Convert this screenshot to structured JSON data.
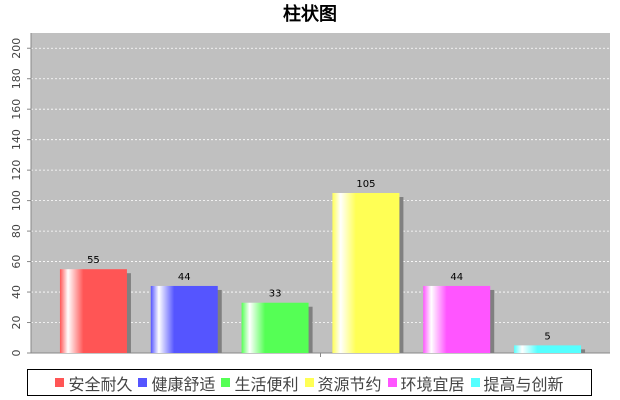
{
  "chart_data": {
    "type": "bar",
    "title": "柱状图",
    "categories": [
      null
    ],
    "series": [
      {
        "name": "安全耐久",
        "color": "#ff5555",
        "values": [
          55
        ]
      },
      {
        "name": "健康舒适",
        "color": "#5555ff",
        "values": [
          44
        ]
      },
      {
        "name": "生活便利",
        "color": "#55ff55",
        "values": [
          33
        ]
      },
      {
        "name": "资源节约",
        "color": "#ffff55",
        "values": [
          105
        ]
      },
      {
        "name": "环境宜居",
        "color": "#ff55ff",
        "values": [
          44
        ]
      },
      {
        "name": "提高与创新",
        "color": "#55ffff",
        "values": [
          5
        ]
      }
    ],
    "ylim": [
      0,
      210
    ],
    "yticks": [
      0,
      20,
      40,
      60,
      80,
      100,
      120,
      140,
      160,
      180,
      200
    ],
    "grid": true
  }
}
